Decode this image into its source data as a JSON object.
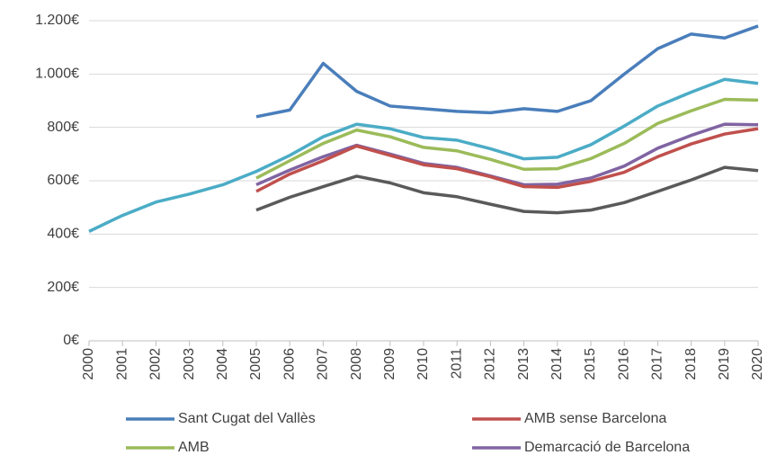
{
  "chart_data": {
    "type": "line",
    "categories": [
      "2000",
      "2001",
      "2002",
      "2003",
      "2004",
      "2005",
      "2006",
      "2007",
      "2008",
      "2009",
      "2010",
      "2011",
      "2012",
      "2013",
      "2014",
      "2015",
      "2016",
      "2017",
      "2018",
      "2019",
      "2020"
    ],
    "series": [
      {
        "name": "Sant Cugat del Vallès",
        "color": "#4a7ebb",
        "values": [
          null,
          null,
          null,
          null,
          null,
          840,
          865,
          1040,
          935,
          880,
          870,
          860,
          855,
          870,
          860,
          900,
          1000,
          1095,
          1150,
          1135,
          1180
        ]
      },
      {
        "name": "AMB sense Barcelona",
        "color": "#c0504d",
        "values": [
          null,
          null,
          null,
          null,
          null,
          560,
          625,
          675,
          730,
          695,
          660,
          645,
          615,
          578,
          575,
          598,
          632,
          690,
          738,
          775,
          795
        ]
      },
      {
        "name": "AMB",
        "color": "#9bbb59",
        "values": [
          null,
          null,
          null,
          null,
          null,
          610,
          675,
          740,
          790,
          765,
          725,
          712,
          680,
          643,
          645,
          683,
          740,
          815,
          862,
          905,
          902
        ]
      },
      {
        "name": "Demarcació de Barcelona",
        "color": "#8064a2",
        "values": [
          null,
          null,
          null,
          null,
          null,
          585,
          640,
          690,
          733,
          700,
          665,
          650,
          618,
          585,
          587,
          610,
          655,
          722,
          770,
          812,
          810
        ]
      },
      {
        "color": "#4bacc6",
        "values": [
          410,
          470,
          520,
          550,
          585,
          635,
          695,
          765,
          812,
          795,
          762,
          752,
          720,
          682,
          688,
          735,
          805,
          880,
          932,
          980,
          965
        ]
      },
      {
        "color": "#5a5a5a",
        "values": [
          null,
          null,
          null,
          null,
          null,
          490,
          538,
          578,
          617,
          592,
          555,
          540,
          512,
          485,
          480,
          490,
          518,
          560,
          603,
          650,
          638
        ]
      }
    ],
    "ylim": [
      0,
      1200
    ],
    "yticks": [
      {
        "value": 0,
        "label": "0€"
      },
      {
        "value": 200,
        "label": "200€"
      },
      {
        "value": 400,
        "label": "400€"
      },
      {
        "value": 600,
        "label": "600€"
      },
      {
        "value": 800,
        "label": "800€"
      },
      {
        "value": 1000,
        "label": "1.000€"
      },
      {
        "value": 1200,
        "label": "1.200€"
      }
    ],
    "grid": true
  }
}
